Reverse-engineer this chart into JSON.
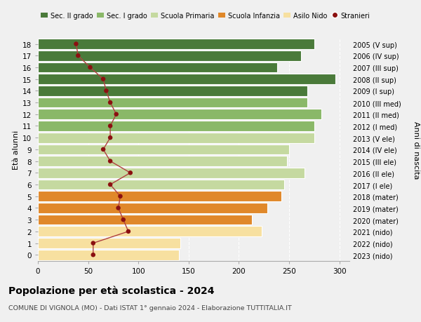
{
  "ages": [
    0,
    1,
    2,
    3,
    4,
    5,
    6,
    7,
    8,
    9,
    10,
    11,
    12,
    13,
    14,
    15,
    16,
    17,
    18
  ],
  "bar_values": [
    140,
    142,
    223,
    213,
    228,
    242,
    245,
    265,
    248,
    250,
    275,
    275,
    282,
    268,
    268,
    296,
    238,
    262,
    275
  ],
  "bar_colors": [
    "#f7e0a0",
    "#f7e0a0",
    "#f7e0a0",
    "#e0882a",
    "#e0882a",
    "#e0882a",
    "#c5d9a0",
    "#c5d9a0",
    "#c5d9a0",
    "#c5d9a0",
    "#c5d9a0",
    "#8ab868",
    "#8ab868",
    "#8ab868",
    "#4a7a3a",
    "#4a7a3a",
    "#4a7a3a",
    "#4a7a3a",
    "#4a7a3a"
  ],
  "stranieri_values": [
    55,
    55,
    90,
    85,
    80,
    82,
    72,
    92,
    72,
    65,
    72,
    72,
    78,
    72,
    68,
    65,
    52,
    40,
    38
  ],
  "right_labels": [
    "2023 (nido)",
    "2022 (nido)",
    "2021 (nido)",
    "2020 (mater)",
    "2019 (mater)",
    "2018 (mater)",
    "2017 (I ele)",
    "2016 (II ele)",
    "2015 (III ele)",
    "2014 (IV ele)",
    "2013 (V ele)",
    "2012 (I med)",
    "2011 (II med)",
    "2010 (III med)",
    "2009 (I sup)",
    "2008 (II sup)",
    "2007 (III sup)",
    "2006 (IV sup)",
    "2005 (V sup)"
  ],
  "legend_labels": [
    "Sec. II grado",
    "Sec. I grado",
    "Scuola Primaria",
    "Scuola Infanzia",
    "Asilo Nido",
    "Stranieri"
  ],
  "legend_colors": [
    "#4a7a3a",
    "#8ab868",
    "#c5d9a0",
    "#e0882a",
    "#f7e0a0",
    "#9b1111"
  ],
  "ylabel": "Età alunni",
  "right_ylabel": "Anni di nascita",
  "title": "Popolazione per età scolastica - 2024",
  "subtitle": "COMUNE DI VIGNOLA (MO) - Dati ISTAT 1° gennaio 2024 - Elaborazione TUTTITALIA.IT",
  "xlim": [
    0,
    310
  ],
  "xticks": [
    0,
    50,
    100,
    150,
    200,
    250,
    300
  ],
  "background_color": "#f0f0f0",
  "stranieri_color": "#8b1010",
  "stranieri_line_color": "#b04040"
}
